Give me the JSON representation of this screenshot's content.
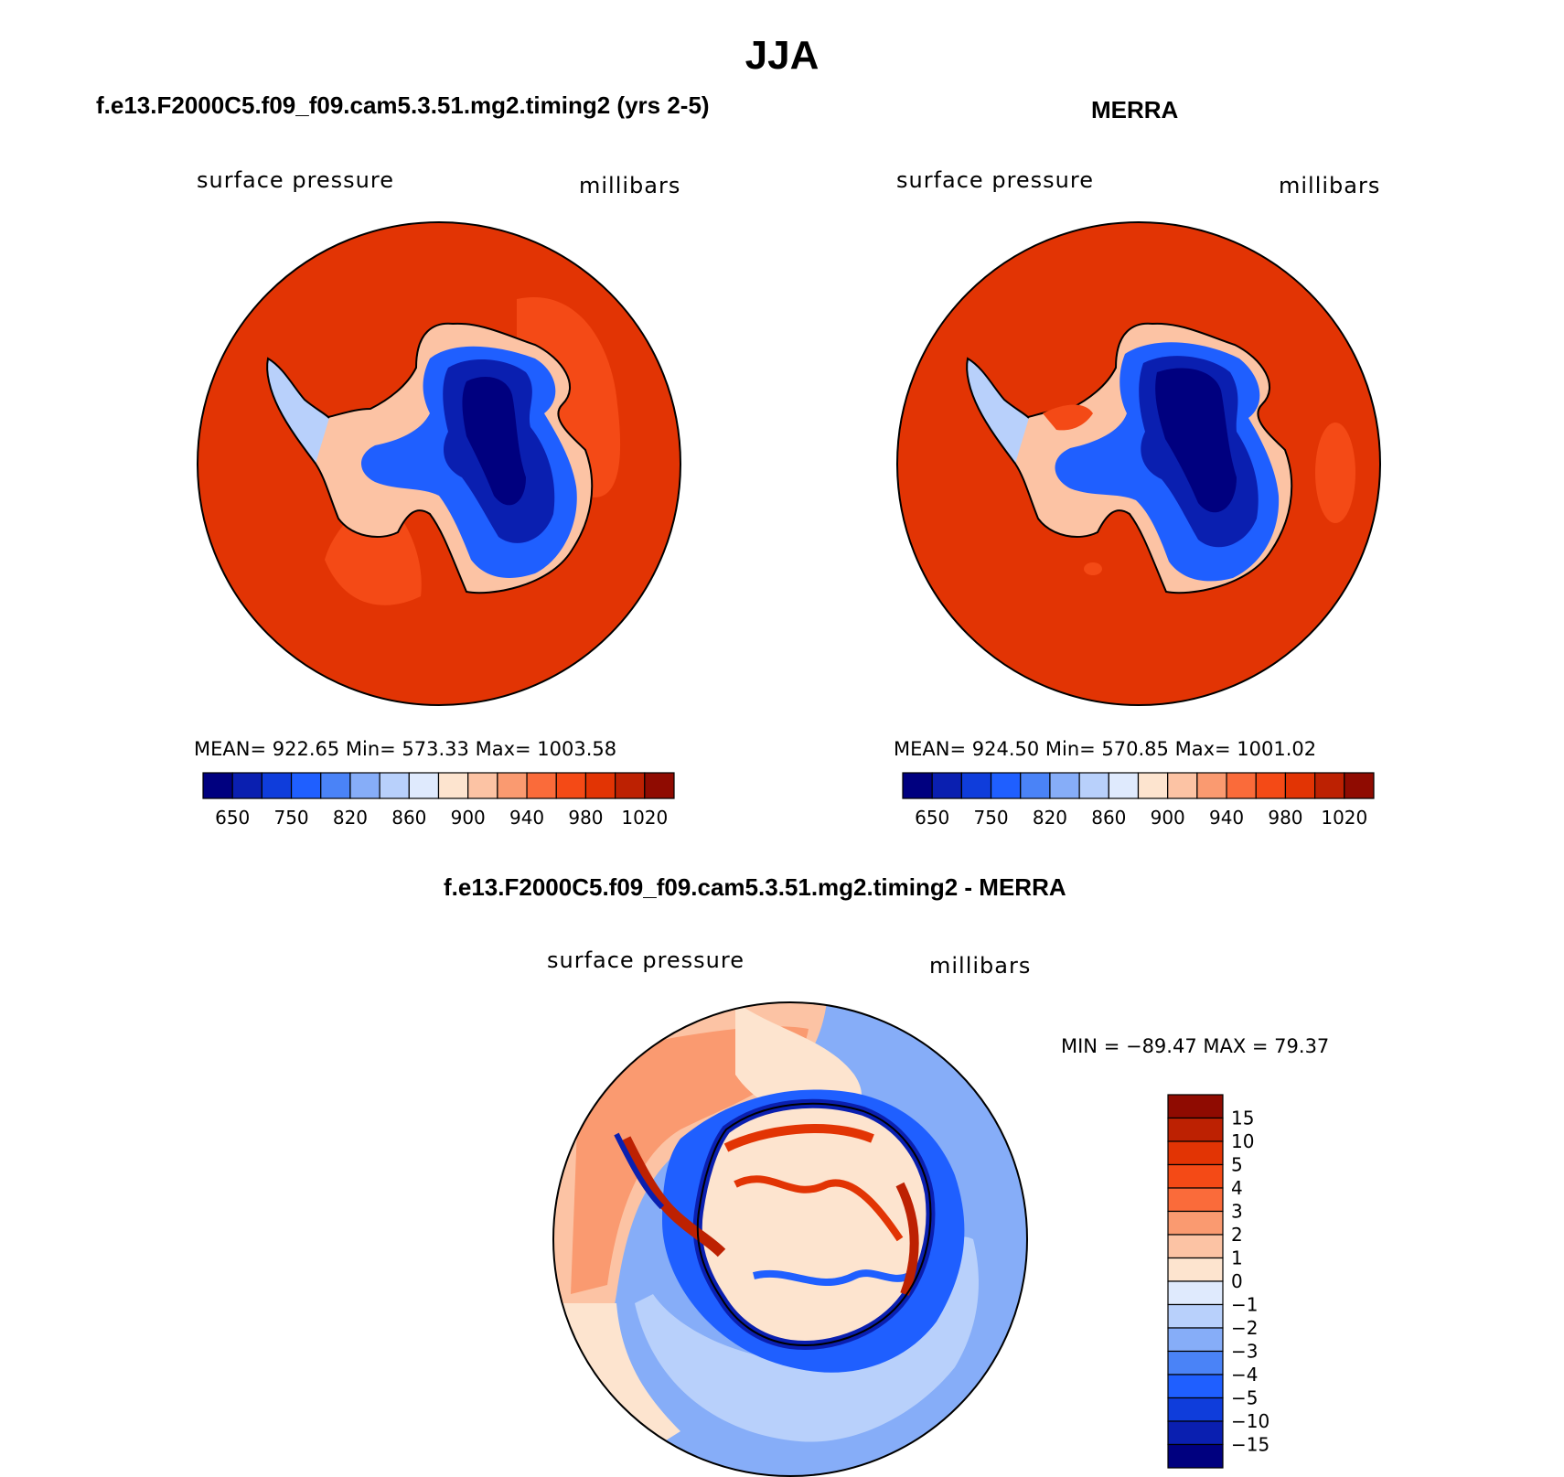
{
  "page_title": "JJA",
  "panels": [
    {
      "title": "f.e13.F2000C5.f09_f09.cam5.3.51.mg2.timing2 (yrs 2-5)",
      "left_label": "surface pressure",
      "right_label": "millibars",
      "stats": "MEAN= 922.65   Min= 573.33   Max= 1003.58"
    },
    {
      "title": "MERRA",
      "left_label": "surface pressure",
      "right_label": "millibars",
      "stats": "MEAN= 924.50   Min= 570.85   Max= 1001.02"
    },
    {
      "title": "f.e13.F2000C5.f09_f09.cam5.3.51.mg2.timing2 - MERRA",
      "left_label": "surface pressure",
      "right_label": "millibars",
      "stats": "MIN = −89.47 MAX =   79.37"
    }
  ],
  "chart_data": [
    {
      "type": "heatmap",
      "projection": "south-polar-stereographic",
      "title": "f.e13.F2000C5.f09_f09.cam5.3.51.mg2.timing2 (yrs 2-5)",
      "variable": "surface pressure",
      "units": "millibars",
      "mean": 922.65,
      "min": 573.33,
      "max": 1003.58,
      "colorbar_orientation": "horizontal",
      "colorbar_tick_labels": [
        "650",
        "750",
        "820",
        "860",
        "900",
        "940",
        "980",
        "1020"
      ],
      "colorbar_colors": [
        "#00007f",
        "#0a1fb0",
        "#0f3ddb",
        "#1f5fff",
        "#4a83f7",
        "#86adf8",
        "#b8d0fb",
        "#dfeafd",
        "#fde4cf",
        "#fcc3a4",
        "#fa9a70",
        "#fa6b3a",
        "#f44a16",
        "#e23404",
        "#bd2102",
        "#8f0b01"
      ]
    },
    {
      "type": "heatmap",
      "projection": "south-polar-stereographic",
      "title": "MERRA",
      "variable": "surface pressure",
      "units": "millibars",
      "mean": 924.5,
      "min": 570.85,
      "max": 1001.02,
      "colorbar_orientation": "horizontal",
      "colorbar_tick_labels": [
        "650",
        "750",
        "820",
        "860",
        "900",
        "940",
        "980",
        "1020"
      ],
      "colorbar_colors": [
        "#00007f",
        "#0a1fb0",
        "#0f3ddb",
        "#1f5fff",
        "#4a83f7",
        "#86adf8",
        "#b8d0fb",
        "#dfeafd",
        "#fde4cf",
        "#fcc3a4",
        "#fa9a70",
        "#fa6b3a",
        "#f44a16",
        "#e23404",
        "#bd2102",
        "#8f0b01"
      ]
    },
    {
      "type": "heatmap",
      "projection": "south-polar-stereographic",
      "title": "f.e13.F2000C5.f09_f09.cam5.3.51.mg2.timing2 - MERRA",
      "variable": "surface pressure",
      "units": "millibars",
      "min": -89.47,
      "max": 79.37,
      "colorbar_orientation": "vertical",
      "colorbar_tick_labels": [
        "15",
        "10",
        "5",
        "4",
        "3",
        "2",
        "1",
        "0",
        "−1",
        "−2",
        "−3",
        "−4",
        "−5",
        "−10",
        "−15"
      ],
      "colorbar_colors": [
        "#8f0b01",
        "#bd2102",
        "#e23404",
        "#f44a16",
        "#fa6b3a",
        "#fa9a70",
        "#fcc3a4",
        "#fde4cf",
        "#dfeafd",
        "#b8d0fb",
        "#86adf8",
        "#4a83f7",
        "#1f5fff",
        "#0f3ddb",
        "#0a1fb0",
        "#00007f"
      ]
    }
  ]
}
